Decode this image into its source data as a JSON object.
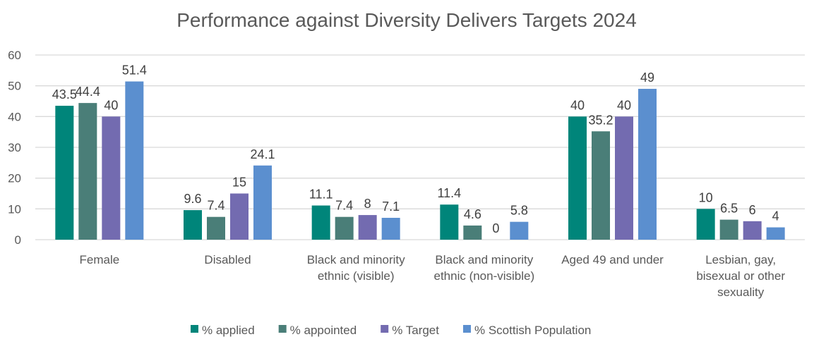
{
  "chart_data": {
    "type": "bar",
    "title": "Performance against Diversity Delivers Targets 2024",
    "xlabel": "",
    "ylabel": "",
    "ylim": [
      0,
      60
    ],
    "yticks": [
      0,
      10,
      20,
      30,
      40,
      50,
      60
    ],
    "grid": true,
    "legend_position": "bottom",
    "categories": [
      [
        "Female"
      ],
      [
        "Disabled"
      ],
      [
        "Black and minority",
        "ethnic (visible)"
      ],
      [
        "Black and minority",
        "ethnic (non-visible)"
      ],
      [
        "Aged 49 and under"
      ],
      [
        "Lesbian, gay,",
        "bisexual or other",
        "sexuality"
      ]
    ],
    "series": [
      {
        "name": "% applied",
        "color": "#00857A",
        "values": [
          43.5,
          9.6,
          11.1,
          11.4,
          40,
          10
        ]
      },
      {
        "name": "% appointed",
        "color": "#4A7E78",
        "values": [
          44.4,
          7.4,
          7.4,
          4.6,
          35.2,
          6.5
        ]
      },
      {
        "name": "% Target",
        "color": "#736BB0",
        "values": [
          40,
          15,
          8,
          0,
          40,
          6
        ]
      },
      {
        "name": "% Scottish Population",
        "color": "#5B8FCF",
        "values": [
          51.4,
          24.1,
          7.1,
          5.8,
          49,
          4
        ]
      }
    ]
  }
}
